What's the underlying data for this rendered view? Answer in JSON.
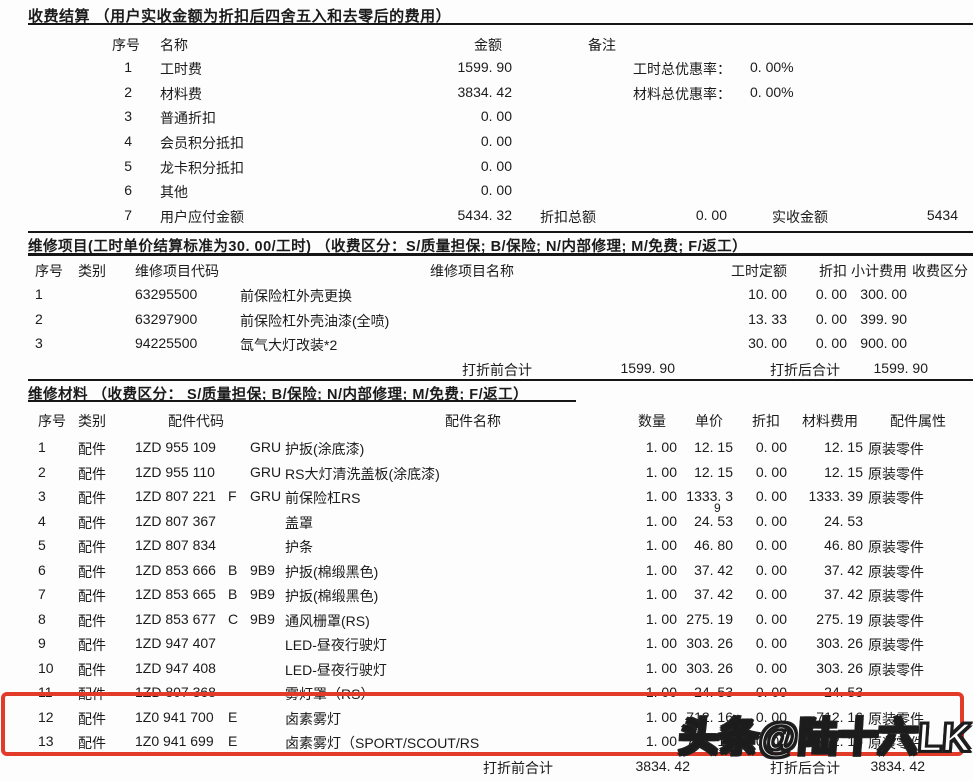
{
  "settlement": {
    "title": "收费结算 （用户实收金额为折扣后四舍五入和去零后的费用）",
    "headers": {
      "no": "序号",
      "name": "名称",
      "amount": "金额",
      "remark": "备注"
    },
    "rows": [
      {
        "no": "1",
        "name": "工时费",
        "amount": "1599. 90",
        "remark_label": "工时总优惠率：",
        "remark_value": "0. 00%"
      },
      {
        "no": "2",
        "name": "材料费",
        "amount": "3834. 42",
        "remark_label": "材料总优惠率：",
        "remark_value": "0. 00%"
      },
      {
        "no": "3",
        "name": "普通折扣",
        "amount": "0. 00"
      },
      {
        "no": "4",
        "name": "会员积分抵扣",
        "amount": "0. 00"
      },
      {
        "no": "5",
        "name": "龙卡积分抵扣",
        "amount": "0. 00"
      },
      {
        "no": "6",
        "name": "其他",
        "amount": "0. 00"
      },
      {
        "no": "7",
        "name": "用户应付金额",
        "amount": "5434. 32",
        "discount_label": "折扣总额",
        "discount_value": "0. 00",
        "received_label": "实收金额",
        "received_value": "5434"
      }
    ]
  },
  "repair_items": {
    "title": "维修项目(工时单价结算标准为30. 00/工时) （收费区分：S/质量担保; B/保险; N/内部修理; M/免费; F/返工）",
    "headers": {
      "no": "序号",
      "cat": "类别",
      "code": "维修项目代码",
      "name": "维修项目名称",
      "hours": "工时定额",
      "discount": "折扣",
      "subtotal": "小计费用",
      "fee_class": "收费区分"
    },
    "rows": [
      {
        "no": "1",
        "cat": "",
        "code": "63295500",
        "name": "前保险杠外壳更换",
        "hours": "10. 00",
        "discount": "0. 00",
        "subtotal": "300. 00",
        "fee_class": ""
      },
      {
        "no": "2",
        "cat": "",
        "code": "63297900",
        "name": "前保险杠外壳油漆(全喷)",
        "hours": "13. 33",
        "discount": "0. 00",
        "subtotal": "399. 90",
        "fee_class": ""
      },
      {
        "no": "3",
        "cat": "",
        "code": "94225500",
        "name": "氙气大灯改装*2",
        "hours": "30. 00",
        "discount": "0. 00",
        "subtotal": "900. 00",
        "fee_class": ""
      }
    ],
    "total_before_label": "打折前合计",
    "total_before": "1599. 90",
    "total_after_label": "打折后合计",
    "total_after": "1599. 90"
  },
  "repair_materials": {
    "title": "维修材料 （收费区分： S/质量担保; B/保险; N/内部修理; M/免费; F/返工）",
    "headers": {
      "no": "序号",
      "cat": "类别",
      "code": "配件代码",
      "name": "配件名称",
      "qty": "数量",
      "unit_price": "单价",
      "discount": "折扣",
      "cost": "材料费用",
      "attr": "配件属性"
    },
    "rows": [
      {
        "no": "1",
        "cat": "配件",
        "code": "1ZD 955 109",
        "suffix": "",
        "color": "GRU",
        "name": "护扳(涂底漆)",
        "qty": "1. 00",
        "unit_price": "12. 15",
        "discount": "0. 00",
        "cost": "12. 15",
        "attr": "原装零件"
      },
      {
        "no": "2",
        "cat": "配件",
        "code": "1ZD 955 110",
        "suffix": "",
        "color": "GRU",
        "name": "RS大灯清洗盖板(涂底漆)",
        "qty": "1. 00",
        "unit_price": "12. 15",
        "discount": "0. 00",
        "cost": "12. 15",
        "attr": "原装零件"
      },
      {
        "no": "3",
        "cat": "配件",
        "code": "1ZD 807 221",
        "suffix": "F",
        "color": "GRU",
        "name": "前保险杠RS",
        "qty": "1. 00",
        "unit_price": "1333. 3",
        "unit_price_wrap": "9",
        "discount": "0. 00",
        "cost": "1333. 39",
        "attr": "原装零件"
      },
      {
        "no": "4",
        "cat": "配件",
        "code": "1ZD 807 367",
        "suffix": "",
        "color": "",
        "name": "盖罩",
        "qty": "1. 00",
        "unit_price": "24. 53",
        "discount": "0. 00",
        "cost": "24. 53",
        "attr": ""
      },
      {
        "no": "5",
        "cat": "配件",
        "code": "1ZD 807 834",
        "suffix": "",
        "color": "",
        "name": "护条",
        "qty": "1. 00",
        "unit_price": "46. 80",
        "discount": "0. 00",
        "cost": "46. 80",
        "attr": "原装零件"
      },
      {
        "no": "6",
        "cat": "配件",
        "code": "1ZD 853 666",
        "suffix": "B",
        "color": "9B9",
        "name": "护扳(棉缎黑色)",
        "qty": "1. 00",
        "unit_price": "37. 42",
        "discount": "0. 00",
        "cost": "37. 42",
        "attr": "原装零件"
      },
      {
        "no": "7",
        "cat": "配件",
        "code": "1ZD 853 665",
        "suffix": "B",
        "color": "9B9",
        "name": "护扳(棉缎黑色)",
        "qty": "1. 00",
        "unit_price": "37. 42",
        "discount": "0. 00",
        "cost": "37. 42",
        "attr": "原装零件"
      },
      {
        "no": "8",
        "cat": "配件",
        "code": "1ZD 853 677",
        "suffix": "C",
        "color": "9B9",
        "name": "通风栅罩(RS)",
        "qty": "1. 00",
        "unit_price": "275. 19",
        "discount": "0. 00",
        "cost": "275. 19",
        "attr": "原装零件"
      },
      {
        "no": "9",
        "cat": "配件",
        "code": "1ZD 947 407",
        "suffix": "",
        "color": "",
        "name": "LED-昼夜行驶灯",
        "qty": "1. 00",
        "unit_price": "303. 26",
        "discount": "0. 00",
        "cost": "303. 26",
        "attr": "原装零件"
      },
      {
        "no": "10",
        "cat": "配件",
        "code": "1ZD 947 408",
        "suffix": "",
        "color": "",
        "name": "LED-昼夜行驶灯",
        "qty": "1. 00",
        "unit_price": "303. 26",
        "discount": "0. 00",
        "cost": "303. 26",
        "attr": "原装零件"
      },
      {
        "no": "11",
        "cat": "配件",
        "code": "1ZD 807 368",
        "suffix": "",
        "color": "",
        "name": "雾灯罩（RS）",
        "qty": "1. 00",
        "unit_price": "24. 53",
        "discount": "0. 00",
        "cost": "24. 53",
        "attr": ""
      },
      {
        "no": "12",
        "cat": "配件",
        "code": "1Z0 941 700",
        "suffix": "E",
        "color": "",
        "name": "卤素雾灯",
        "qty": "1. 00",
        "unit_price": "712. 16",
        "discount": "0. 00",
        "cost": "712. 16",
        "attr": "原装零件"
      },
      {
        "no": "13",
        "cat": "配件",
        "code": "1Z0 941 699",
        "suffix": "E",
        "color": "",
        "name": "卤素雾灯（SPORT/SCOUT/RS",
        "qty": "1. 00",
        "unit_price": "712. 16",
        "discount": "0. 00",
        "cost": "712. 16",
        "attr": "原装零件"
      }
    ],
    "total_before_label": "打折前合计",
    "total_before": "3834. 42",
    "total_after_label": "打折后合计",
    "total_after": "3834. 42"
  },
  "highlight": {
    "color": "#e23b2a"
  },
  "watermark": "头条@陆十六LK"
}
